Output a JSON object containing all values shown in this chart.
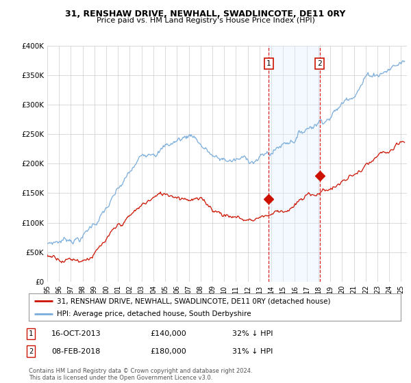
{
  "title": "31, RENSHAW DRIVE, NEWHALL, SWADLINCOTE, DE11 0RY",
  "subtitle": "Price paid vs. HM Land Registry's House Price Index (HPI)",
  "ylim": [
    0,
    400000
  ],
  "xlim_start": 1995.0,
  "xlim_end": 2025.5,
  "yticks": [
    0,
    50000,
    100000,
    150000,
    200000,
    250000,
    300000,
    350000,
    400000
  ],
  "ytick_labels": [
    "£0",
    "£50K",
    "£100K",
    "£150K",
    "£200K",
    "£250K",
    "£300K",
    "£350K",
    "£400K"
  ],
  "xticks": [
    1995,
    1996,
    1997,
    1998,
    1999,
    2000,
    2001,
    2002,
    2003,
    2004,
    2005,
    2006,
    2007,
    2008,
    2009,
    2010,
    2011,
    2012,
    2013,
    2014,
    2015,
    2016,
    2017,
    2018,
    2019,
    2020,
    2021,
    2022,
    2023,
    2024,
    2025
  ],
  "transaction1_x": 2013.79,
  "transaction1_y": 140000,
  "transaction1_date": "16-OCT-2013",
  "transaction1_price": "£140,000",
  "transaction1_hpi": "32% ↓ HPI",
  "transaction2_x": 2018.1,
  "transaction2_y": 180000,
  "transaction2_date": "08-FEB-2018",
  "transaction2_price": "£180,000",
  "transaction2_hpi": "31% ↓ HPI",
  "hpi_line_color": "#7aaddb",
  "property_line_color": "#cc1100",
  "shade_color": "#ddeeff",
  "dashed_line_color": "#dd2222",
  "legend_label1": "31, RENSHAW DRIVE, NEWHALL, SWADLINCOTE, DE11 0RY (detached house)",
  "legend_label2": "HPI: Average price, detached house, South Derbyshire",
  "footer": "Contains HM Land Registry data © Crown copyright and database right 2024.\nThis data is licensed under the Open Government Licence v3.0.",
  "background_color": "#ffffff",
  "grid_color": "#cccccc"
}
